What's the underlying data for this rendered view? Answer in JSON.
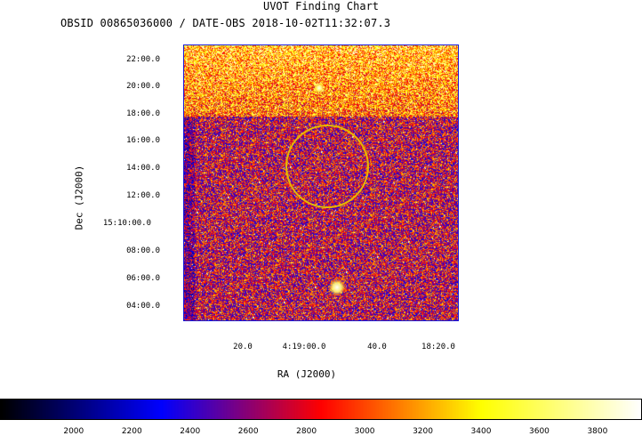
{
  "title": "UVOT Finding Chart",
  "subtitle": "OBSID 00865036000 / DATE-OBS 2018-10-02T11:32:07.3",
  "chart_data": {
    "type": "heatmap",
    "xlabel": "RA (J2000)",
    "ylabel": "Dec (J2000)",
    "y_ticks": [
      "22:00.0",
      "20:00.0",
      "18:00.0",
      "16:00.0",
      "14:00.0",
      "12:00.0",
      "15:10:00.0",
      "08:00.0",
      "06:00.0",
      "04:00.0"
    ],
    "x_ticks": [
      "20.0",
      "4:19:00.0",
      "40.0",
      "18:20.0"
    ],
    "colorbar": {
      "ticks": [
        2000,
        2200,
        2400,
        2600,
        2800,
        3000,
        3200,
        3400,
        3600,
        3800
      ],
      "range": [
        1750,
        3950
      ],
      "colormap": [
        "#000000",
        "#0000ff",
        "#ff0000",
        "#ffff00",
        "#ffffff"
      ]
    },
    "circle": {
      "color": "#e6b800"
    },
    "grid": false
  }
}
